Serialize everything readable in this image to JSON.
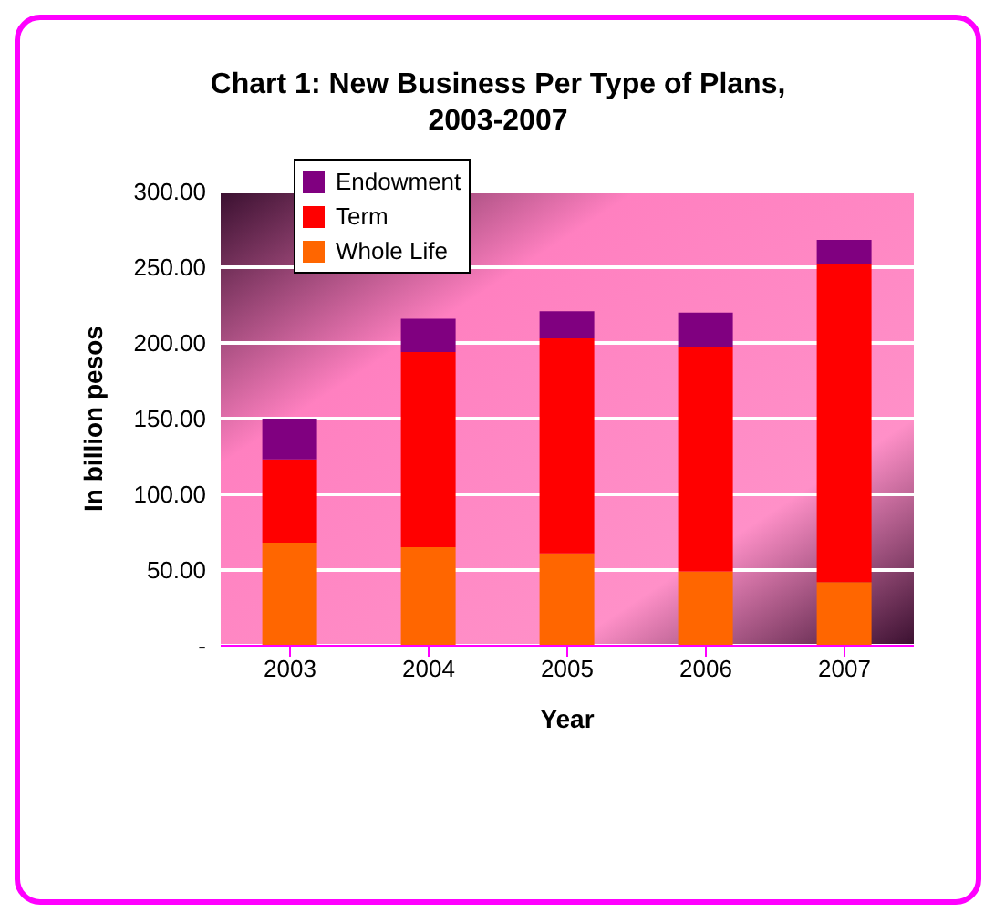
{
  "chart_data": {
    "type": "bar",
    "title": "Chart 1: New Business Per Type of Plans, 2003-2007",
    "xlabel": "Year",
    "ylabel": "In billion pesos",
    "categories": [
      "2003",
      "2004",
      "2005",
      "2006",
      "2007"
    ],
    "stacked": true,
    "series": [
      {
        "name": "Whole Life",
        "color": "#ff6600",
        "values": [
          68,
          65,
          61,
          49,
          42
        ]
      },
      {
        "name": "Term",
        "color": "#ff0000",
        "values": [
          55,
          129,
          142,
          148,
          210
        ]
      },
      {
        "name": "Endowment",
        "color": "#800080",
        "values": [
          27,
          22,
          18,
          23,
          16
        ]
      }
    ],
    "ylim": [
      0,
      300
    ],
    "yticks": [
      {
        "value": 0,
        "label": "-"
      },
      {
        "value": 50,
        "label": "50.00"
      },
      {
        "value": 100,
        "label": "100.00"
      },
      {
        "value": 150,
        "label": "150.00"
      },
      {
        "value": 200,
        "label": "200.00"
      },
      {
        "value": 250,
        "label": "250.00"
      },
      {
        "value": 300,
        "label": "300.00"
      }
    ],
    "grid": "y",
    "legend": "top left"
  }
}
